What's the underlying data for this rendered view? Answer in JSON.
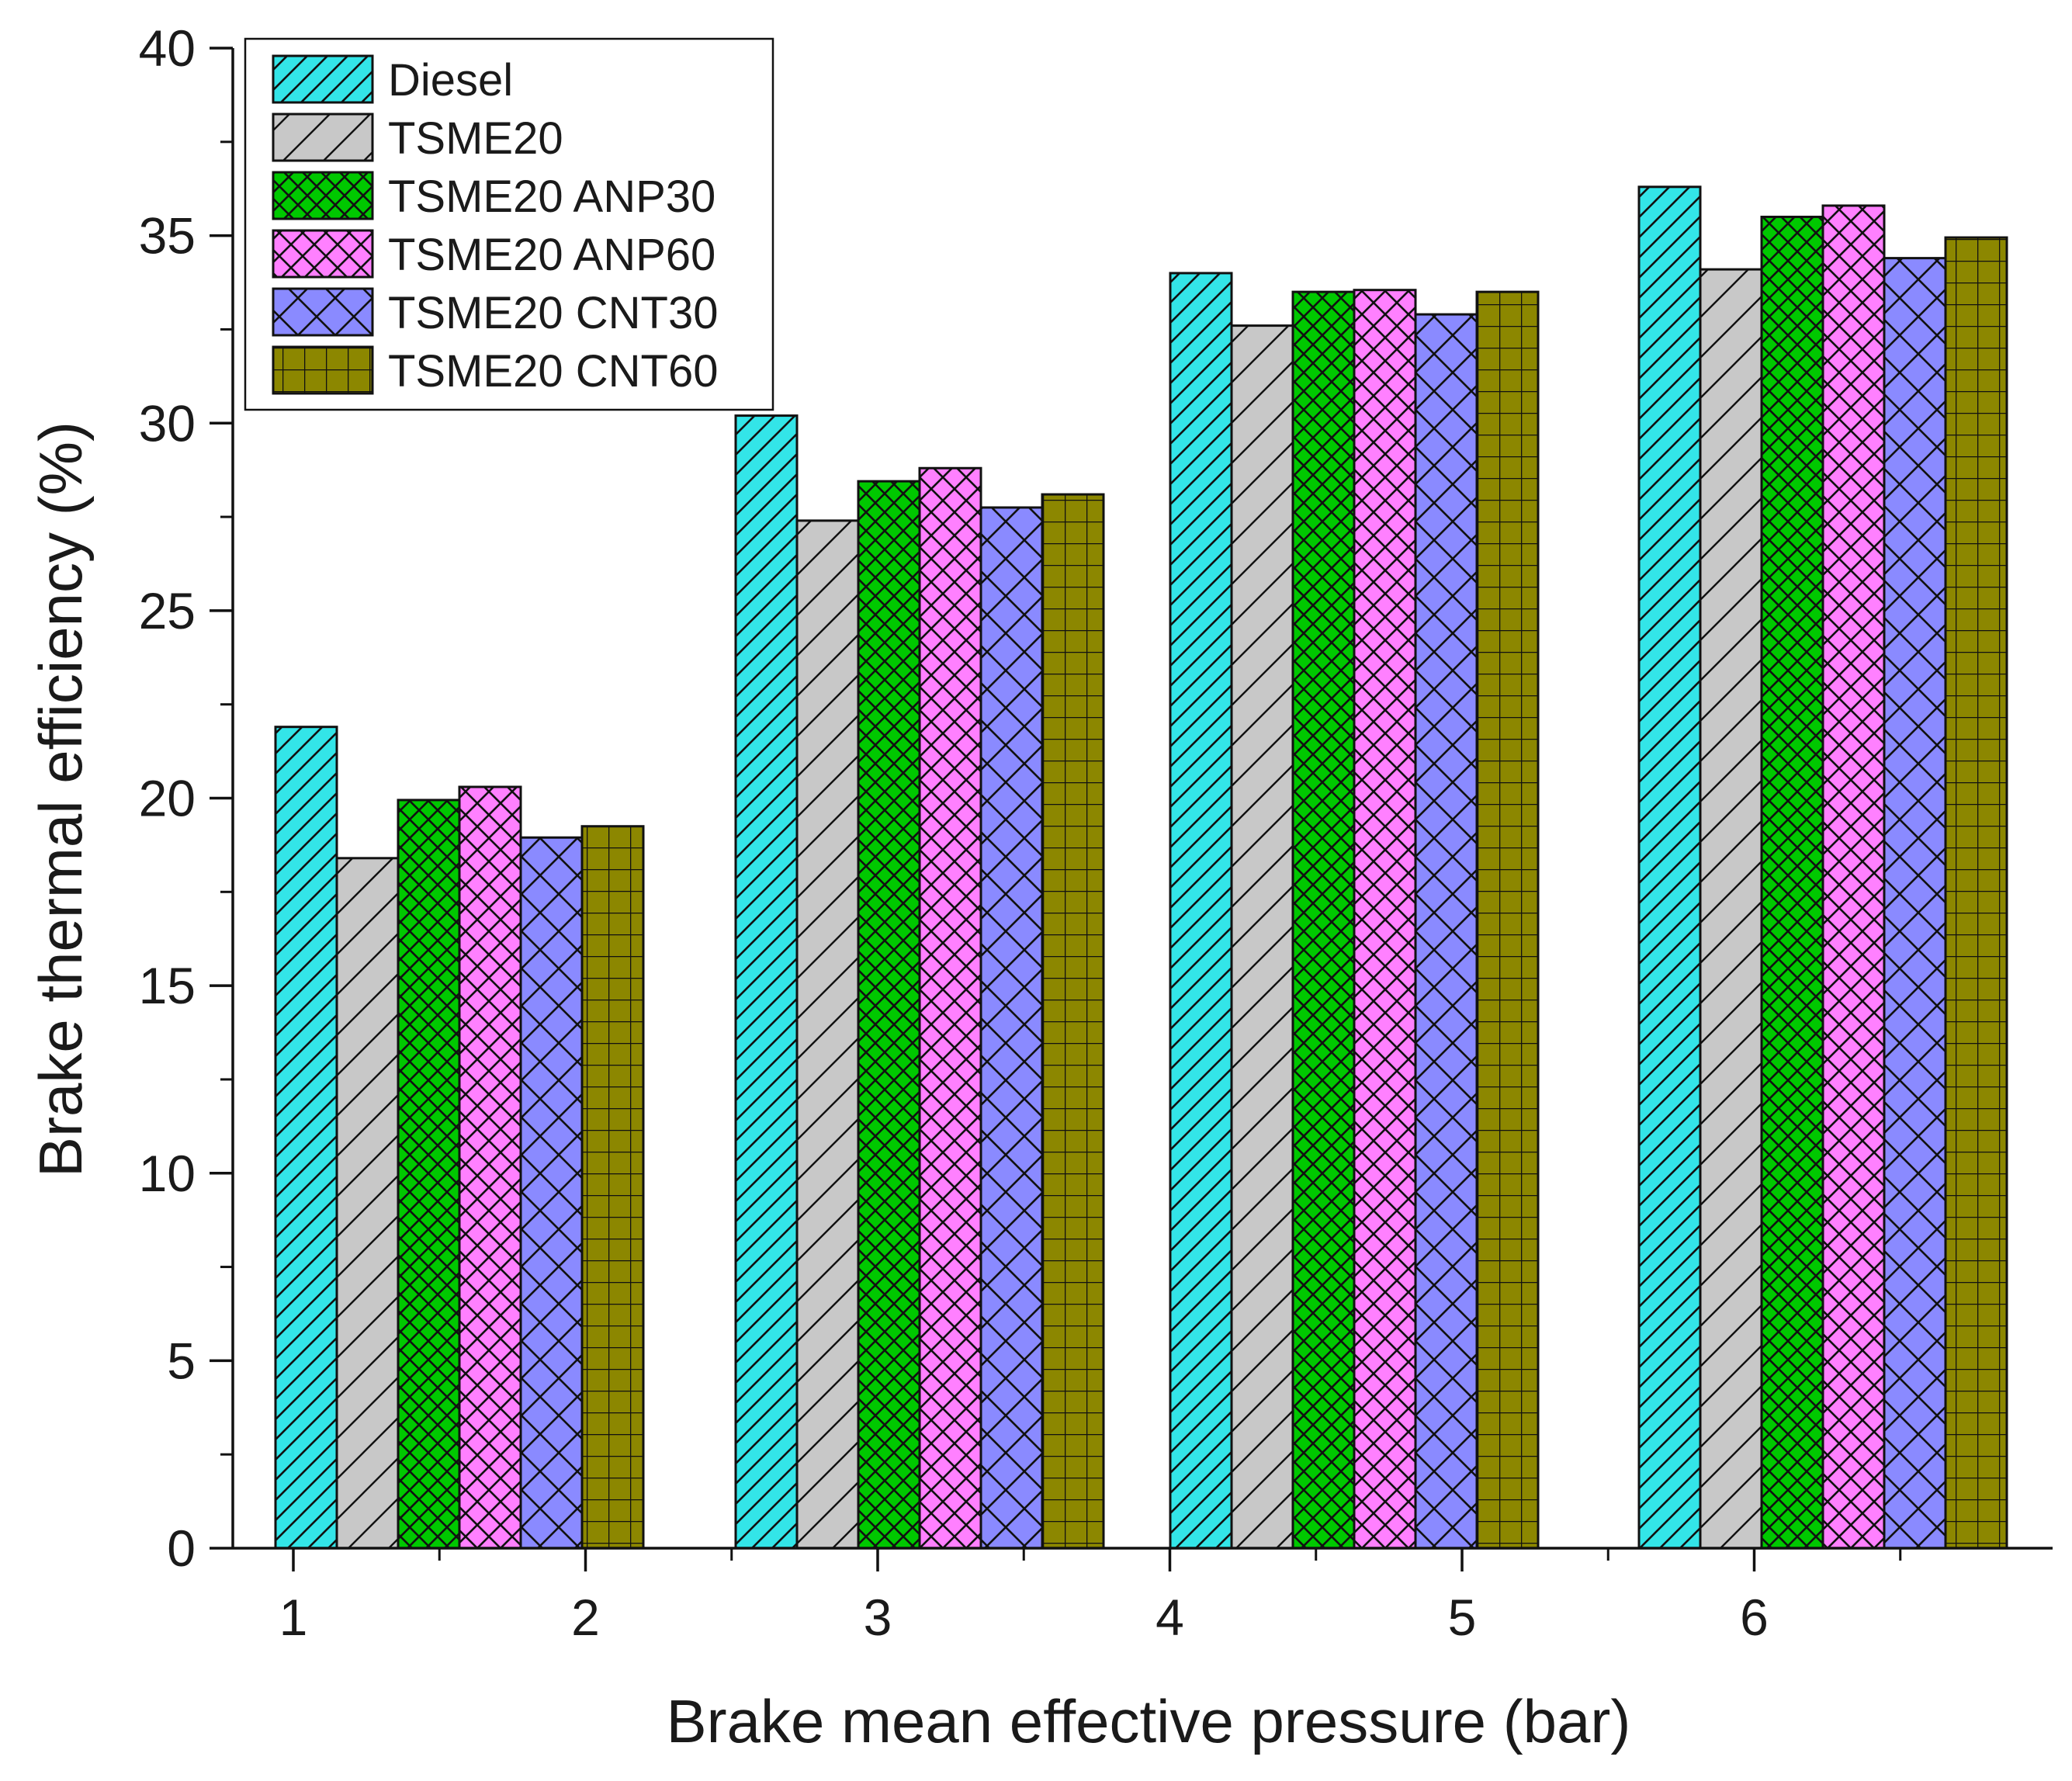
{
  "chart_data": {
    "type": "bar",
    "title": "",
    "xlabel": "Brake mean effective pressure (bar)",
    "ylabel": "Brake thermal efficiency (%)",
    "ylim": [
      0,
      40
    ],
    "yticks": [
      0,
      5,
      10,
      15,
      20,
      25,
      30,
      35,
      40
    ],
    "xticks": [
      "1",
      "2",
      "3",
      "4",
      "5",
      "6"
    ],
    "group_count": 4,
    "legend_position": "top-left",
    "series": [
      {
        "name": "Diesel",
        "values": [
          21.9,
          30.2,
          34.0,
          36.3
        ],
        "color": "#33e5e8",
        "pattern": "diag-fine"
      },
      {
        "name": "TSME20",
        "values": [
          18.4,
          27.4,
          32.6,
          34.1
        ],
        "color": "#c8c8c8",
        "pattern": "diag-wide"
      },
      {
        "name": "TSME20 ANP30",
        "values": [
          19.95,
          28.45,
          33.5,
          35.5
        ],
        "color": "#00c800",
        "pattern": "cross-diag-fine"
      },
      {
        "name": "TSME20 ANP60",
        "values": [
          20.3,
          28.8,
          33.55,
          35.8
        ],
        "color": "#ff80ff",
        "pattern": "cross-diag-med"
      },
      {
        "name": "TSME20 CNT30",
        "values": [
          18.95,
          27.75,
          32.9,
          34.4
        ],
        "color": "#8a8aff",
        "pattern": "cross-diag-wide"
      },
      {
        "name": "TSME20 CNT60",
        "values": [
          19.25,
          28.1,
          33.5,
          34.95
        ],
        "color": "#8c8700",
        "pattern": "grid"
      }
    ]
  }
}
